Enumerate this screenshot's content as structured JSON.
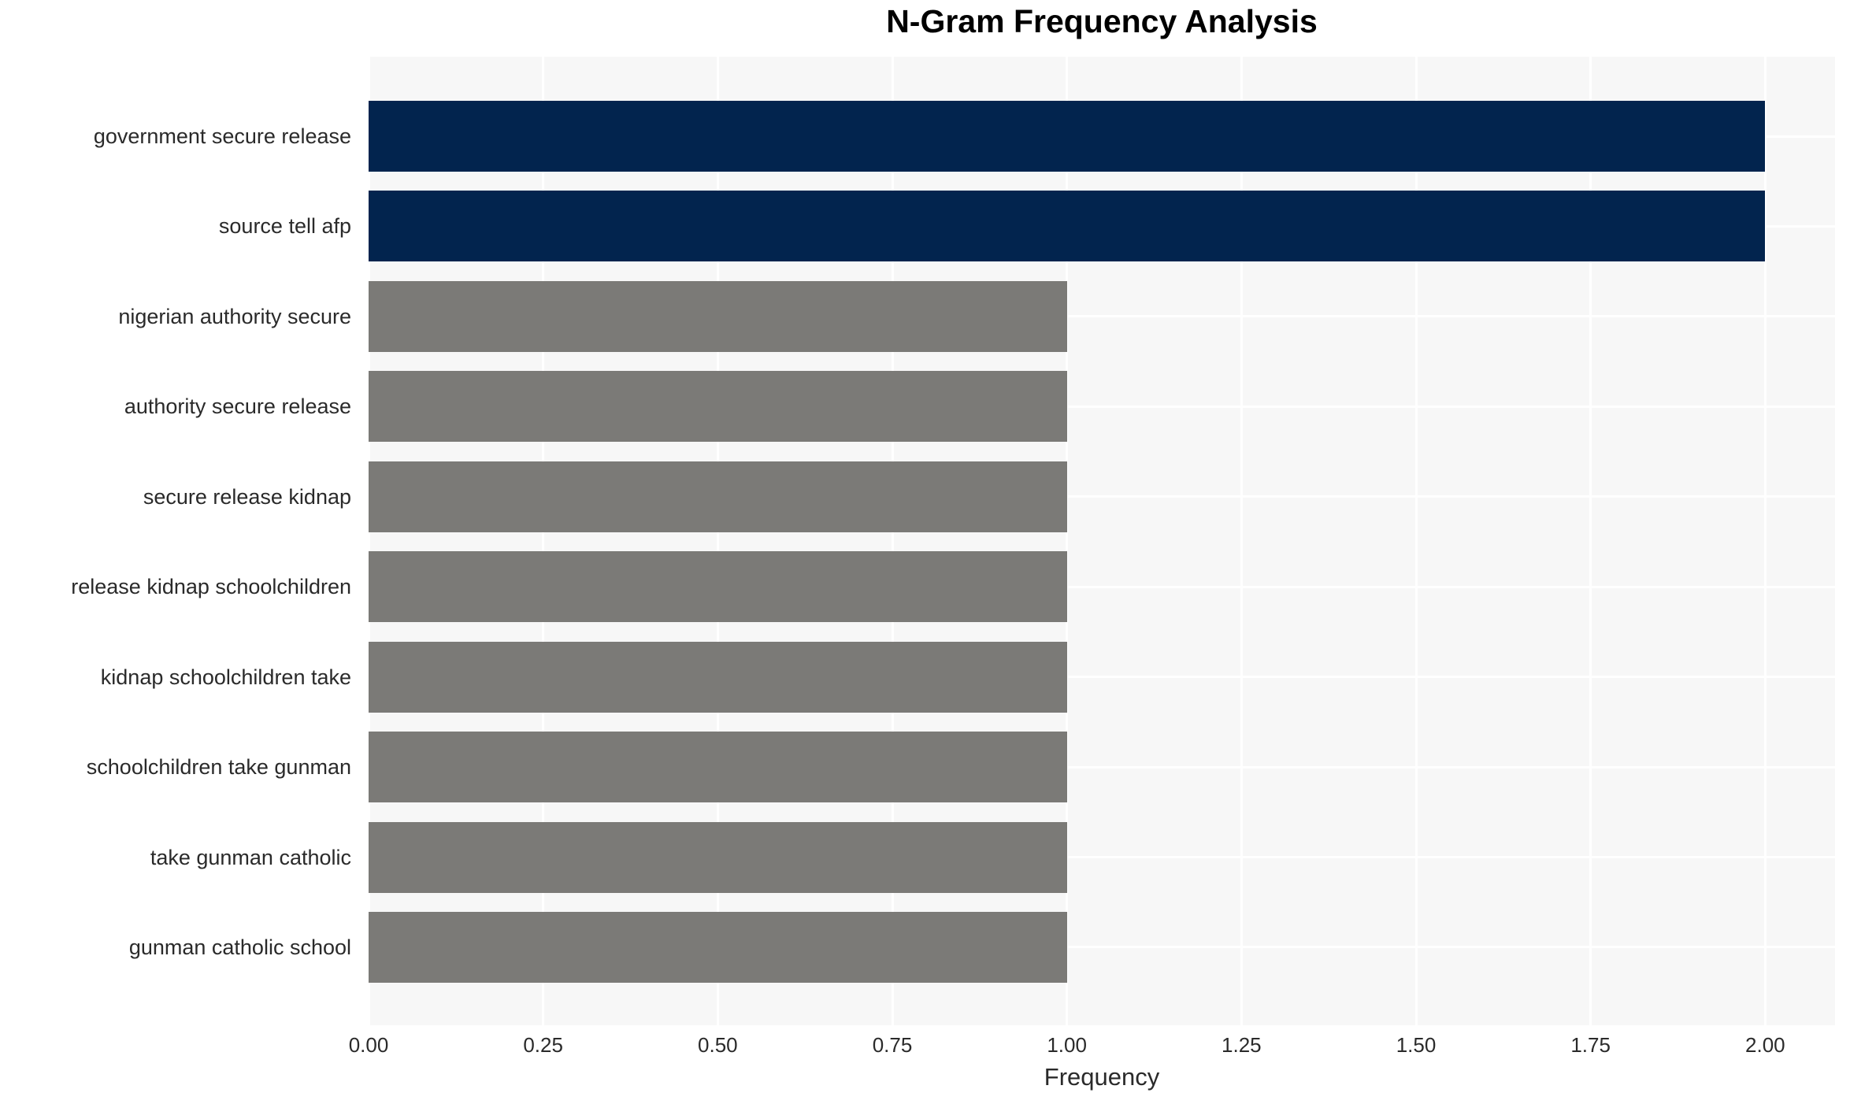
{
  "chart_data": {
    "type": "bar",
    "orientation": "horizontal",
    "title": "N-Gram Frequency Analysis",
    "xlabel": "Frequency",
    "ylabel": "",
    "categories": [
      "government secure release",
      "source tell afp",
      "nigerian authority secure",
      "authority secure release",
      "secure release kidnap",
      "release kidnap schoolchildren",
      "kidnap schoolchildren take",
      "schoolchildren take gunman",
      "take gunman catholic",
      "gunman catholic school"
    ],
    "values": [
      2,
      2,
      1,
      1,
      1,
      1,
      1,
      1,
      1,
      1
    ],
    "bar_colors": [
      "#02244E",
      "#02244E",
      "#7B7A77",
      "#7B7A77",
      "#7B7A77",
      "#7B7A77",
      "#7B7A77",
      "#7B7A77",
      "#7B7A77",
      "#7B7A77"
    ],
    "x_ticks": [
      "0.00",
      "0.25",
      "0.50",
      "0.75",
      "1.00",
      "1.25",
      "1.50",
      "1.75",
      "2.00"
    ],
    "x_tick_values": [
      0,
      0.25,
      0.5,
      0.75,
      1.0,
      1.25,
      1.5,
      1.75,
      2.0
    ],
    "xlim": [
      0,
      2.1
    ],
    "legend": "none",
    "grid": "on",
    "colors": {
      "highlight": "#02244E",
      "default_bar": "#7B7A77",
      "plot_background": "#F7F7F7",
      "gridline": "#FFFFFF",
      "text": "#2A2A2A",
      "title_text": "#000000",
      "page_background": "#FFFFFF"
    }
  }
}
